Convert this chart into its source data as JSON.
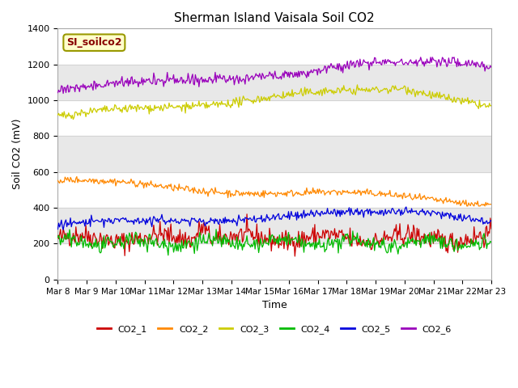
{
  "title": "Sherman Island Vaisala Soil CO2",
  "xlabel": "Time",
  "ylabel": "Soil CO2 (mV)",
  "ylim": [
    0,
    1400
  ],
  "label_box_text": "SI_soilco2",
  "legend_labels": [
    "CO2_1",
    "CO2_2",
    "CO2_3",
    "CO2_4",
    "CO2_5",
    "CO2_6"
  ],
  "line_colors": [
    "#cc0000",
    "#ff8800",
    "#cccc00",
    "#00bb00",
    "#0000dd",
    "#9900bb"
  ],
  "x_tick_labels": [
    "Mar 8",
    "Mar 9",
    "Mar 10",
    "Mar 11",
    "Mar 12",
    "Mar 13",
    "Mar 14",
    "Mar 15",
    "Mar 16",
    "Mar 17",
    "Mar 18",
    "Mar 19",
    "Mar 20",
    "Mar 21",
    "Mar 22",
    "Mar 23"
  ],
  "plot_bg_color": "#ffffff",
  "band_gray_color": "#e8e8e8",
  "band_ranges_gray": [
    [
      200,
      400
    ],
    [
      600,
      800
    ],
    [
      1000,
      1200
    ]
  ],
  "n_points": 480,
  "seed": 42
}
